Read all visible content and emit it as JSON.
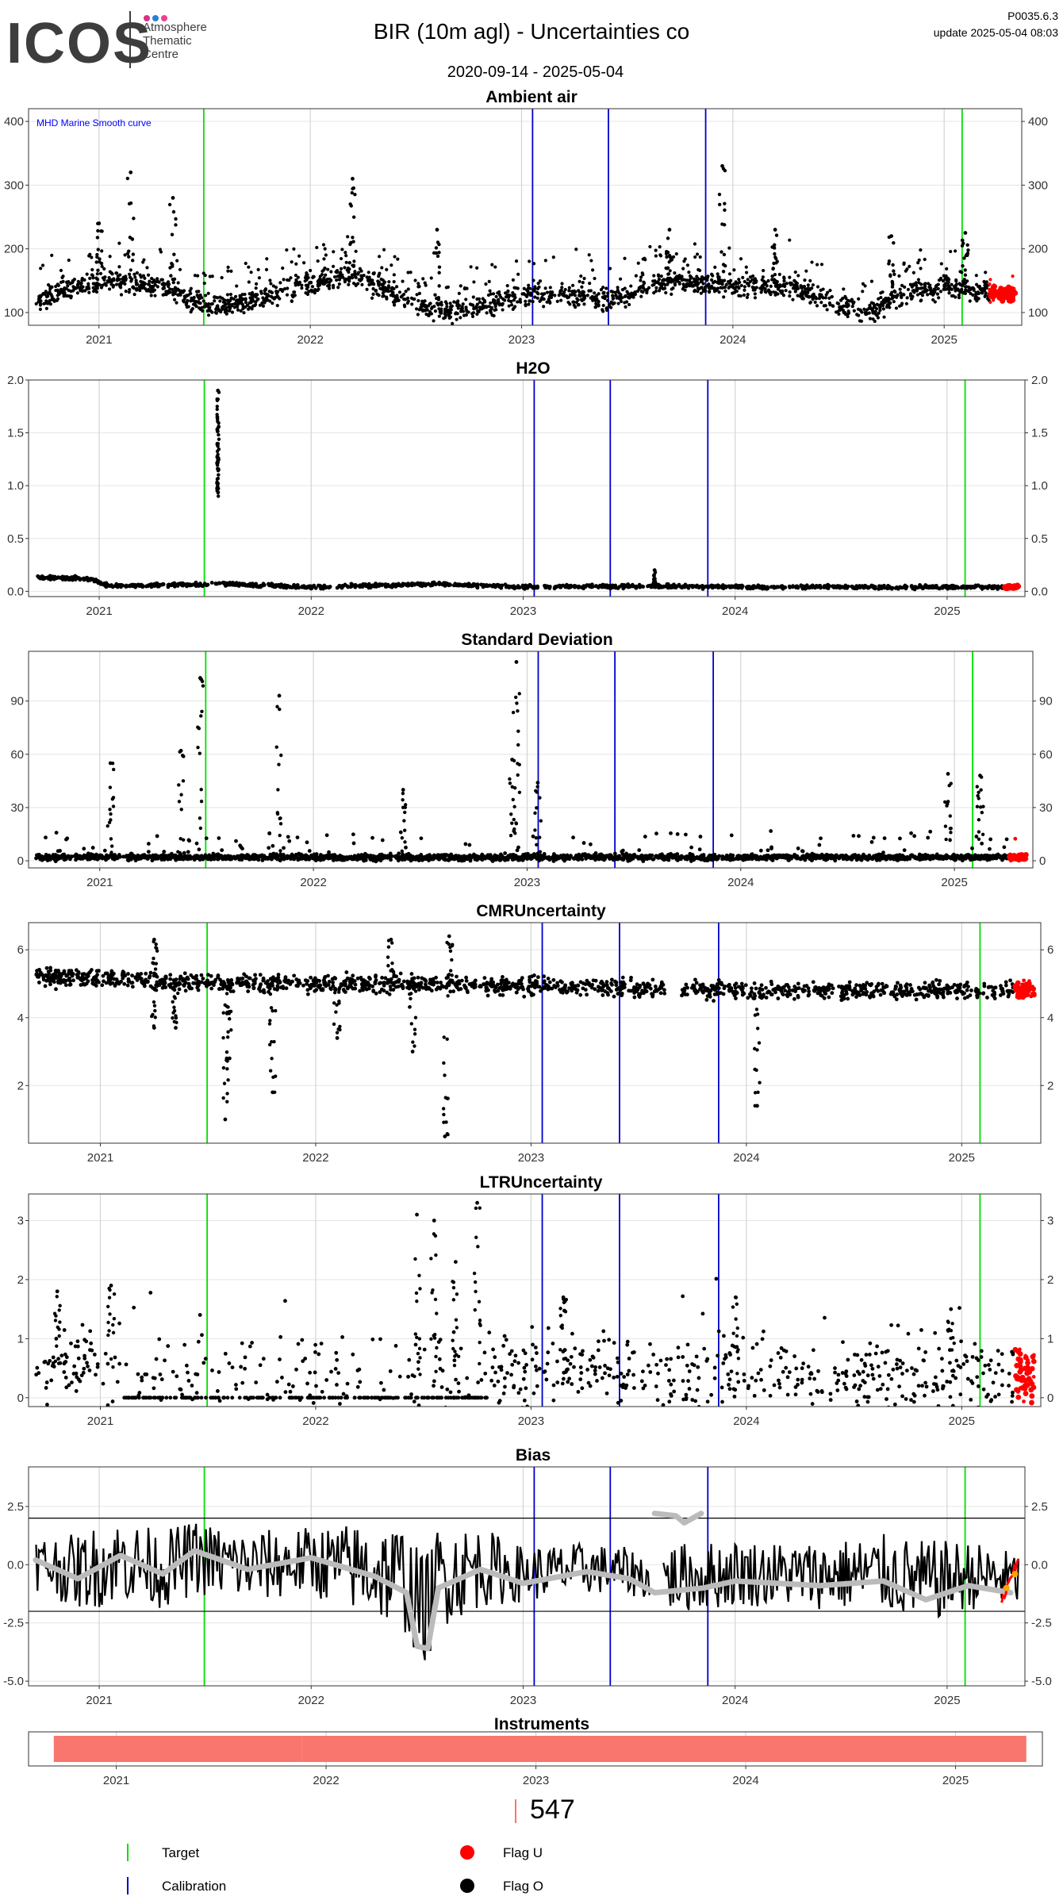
{
  "header": {
    "logo_text": "ICOS",
    "logo_sub": [
      "Atmosphere",
      "Thematic",
      "Centre"
    ],
    "logo_dot_colors": [
      "#d63384",
      "#2a7fd4",
      "#e84393"
    ],
    "title": "BIR  (10m agl) - Uncertainties co",
    "date_range": "2020-09-14 - 2025-05-04",
    "version": "P0035.6.3",
    "update": "update  2025-05-04 08:03"
  },
  "colors": {
    "target": "#00e000",
    "calibration": "#0000cc",
    "flag_u": "#ff0000",
    "flag_o": "#000000",
    "smooth": "#bbbbbb",
    "instrument": "#f8766d",
    "annotation": "#0000ff"
  },
  "markers": {
    "target_dates": [
      "2021-07-01",
      "2025-02-01"
    ],
    "calibration_dates": [
      "2023-01-20",
      "2023-05-31",
      "2023-11-15"
    ]
  },
  "chart_data": [
    {
      "type": "scatter",
      "title": "Ambient air",
      "annotation": "MHD Marine Smooth curve",
      "xlim": [
        "2020-09-01",
        "2025-05-15"
      ],
      "ylim": [
        80,
        420
      ],
      "yticks": [
        100,
        200,
        300,
        400
      ],
      "xticks": [
        "2021",
        "2022",
        "2023",
        "2024",
        "2025"
      ],
      "baseline": [
        [
          2020.7,
          120
        ],
        [
          2020.9,
          140
        ],
        [
          2021.1,
          150
        ],
        [
          2021.3,
          140
        ],
        [
          2021.5,
          110
        ],
        [
          2021.7,
          115
        ],
        [
          2022.0,
          145
        ],
        [
          2022.2,
          160
        ],
        [
          2022.4,
          130
        ],
        [
          2022.6,
          100
        ],
        [
          2022.8,
          108
        ],
        [
          2023.0,
          125
        ],
        [
          2023.2,
          130
        ],
        [
          2023.4,
          118
        ],
        [
          2023.6,
          142
        ],
        [
          2023.75,
          150
        ],
        [
          2023.95,
          142
        ],
        [
          2024.3,
          140
        ],
        [
          2024.5,
          112
        ],
        [
          2024.65,
          100
        ],
        [
          2024.8,
          130
        ],
        [
          2025.0,
          140
        ],
        [
          2025.3,
          128
        ]
      ],
      "spikes": [
        [
          2021.0,
          240
        ],
        [
          2021.15,
          320
        ],
        [
          2021.35,
          280
        ],
        [
          2022.2,
          310
        ],
        [
          2022.6,
          230
        ],
        [
          2023.7,
          230
        ],
        [
          2023.95,
          330
        ],
        [
          2024.2,
          230
        ],
        [
          2024.75,
          220
        ],
        [
          2025.1,
          225
        ]
      ],
      "flag_u_range": [
        "2025-03-20",
        "2025-05-04"
      ]
    },
    {
      "type": "scatter",
      "title": "H2O",
      "xlim": [
        "2020-09-01",
        "2025-05-15"
      ],
      "ylim": [
        -0.05,
        2.0
      ],
      "yticks": [
        0.0,
        0.5,
        1.0,
        1.5,
        2.0
      ],
      "ytick_labels": [
        "0.0",
        "0.5",
        "1.0",
        "1.5",
        "2.0"
      ],
      "xticks": [
        "2021",
        "2022",
        "2023",
        "2024",
        "2025"
      ],
      "baseline": [
        [
          2020.7,
          0.13
        ],
        [
          2020.95,
          0.12
        ],
        [
          2021.05,
          0.05
        ],
        [
          2021.6,
          0.07
        ],
        [
          2022.0,
          0.04
        ],
        [
          2022.6,
          0.07
        ],
        [
          2023.0,
          0.04
        ],
        [
          2023.6,
          0.05
        ],
        [
          2024.0,
          0.04
        ],
        [
          2025.3,
          0.04
        ]
      ],
      "spikes": [
        [
          2021.56,
          1.9
        ],
        [
          2023.62,
          0.2
        ]
      ],
      "flag_u_range": [
        "2025-04-10",
        "2025-05-04"
      ]
    },
    {
      "type": "scatter",
      "title": "Standard Deviation",
      "xlim": [
        "2020-09-01",
        "2025-05-15"
      ],
      "ylim": [
        -4,
        118
      ],
      "yticks": [
        0,
        30,
        60,
        90
      ],
      "xticks": [
        "2021",
        "2022",
        "2023",
        "2024",
        "2025"
      ],
      "baseline": [
        [
          2020.7,
          2
        ],
        [
          2025.3,
          2
        ]
      ],
      "spikes": [
        [
          2021.05,
          55
        ],
        [
          2021.47,
          103
        ],
        [
          2021.38,
          62
        ],
        [
          2021.84,
          93
        ],
        [
          2022.42,
          40
        ],
        [
          2022.95,
          112
        ],
        [
          2022.93,
          57
        ],
        [
          2023.05,
          44
        ],
        [
          2024.97,
          49
        ],
        [
          2025.12,
          48
        ]
      ],
      "flag_u_range": [
        "2025-04-05",
        "2025-05-04"
      ]
    },
    {
      "type": "scatter",
      "title": "CMRUncertainty",
      "xlim": [
        "2020-09-01",
        "2025-05-15"
      ],
      "ylim": [
        0.3,
        6.8
      ],
      "yticks": [
        2,
        4,
        6
      ],
      "xticks": [
        "2021",
        "2022",
        "2023",
        "2024",
        "2025"
      ],
      "baseline": [
        [
          2020.7,
          5.2
        ],
        [
          2021.2,
          5.1
        ],
        [
          2021.6,
          5.0
        ],
        [
          2022.5,
          5.0
        ],
        [
          2023.2,
          4.9
        ],
        [
          2024.0,
          4.8
        ],
        [
          2025.3,
          4.8
        ]
      ],
      "spikes": [
        [
          2021.6,
          2.8
        ],
        [
          2021.58,
          1.0
        ],
        [
          2021.8,
          1.8
        ],
        [
          2022.1,
          3.4
        ],
        [
          2022.45,
          3.0
        ],
        [
          2022.6,
          0.5
        ],
        [
          2022.35,
          6.3
        ],
        [
          2022.62,
          6.4
        ],
        [
          2021.25,
          6.3
        ],
        [
          2024.05,
          1.4
        ],
        [
          2021.25,
          3.7
        ],
        [
          2021.35,
          3.7
        ]
      ],
      "flag_u_range": [
        "2025-04-01",
        "2025-05-04"
      ]
    },
    {
      "type": "scatter",
      "title": "LTRUncertainty",
      "xlim": [
        "2020-09-01",
        "2025-05-15"
      ],
      "ylim": [
        -0.15,
        3.45
      ],
      "yticks": [
        0,
        1,
        2,
        3
      ],
      "xticks": [
        "2021",
        "2022",
        "2023",
        "2024",
        "2025"
      ],
      "baseline": [
        [
          2020.7,
          0.6
        ],
        [
          2021.0,
          0.5
        ],
        [
          2021.5,
          0.35
        ],
        [
          2022.5,
          0.35
        ],
        [
          2023.2,
          0.5
        ],
        [
          2023.8,
          0.4
        ],
        [
          2024.5,
          0.35
        ],
        [
          2025.3,
          0.4
        ]
      ],
      "spikes": [
        [
          2020.8,
          1.8
        ],
        [
          2021.05,
          1.9
        ],
        [
          2022.47,
          3.1
        ],
        [
          2022.55,
          3.0
        ],
        [
          2022.75,
          3.3
        ],
        [
          2022.65,
          2.3
        ],
        [
          2023.15,
          1.7
        ],
        [
          2023.95,
          1.7
        ],
        [
          2024.95,
          1.5
        ]
      ],
      "flag_u_range": [
        "2025-04-01",
        "2025-05-04"
      ]
    },
    {
      "type": "line",
      "title": "Bias",
      "xlim": [
        "2020-09-01",
        "2025-05-15"
      ],
      "ylim": [
        -5.2,
        4.2
      ],
      "yticks": [
        -5.0,
        -2.5,
        0.0,
        2.5
      ],
      "ytick_labels": [
        "-5.0",
        "-2.5",
        "0.0",
        "2.5"
      ],
      "xticks": [
        "2021",
        "2022",
        "2023",
        "2024",
        "2025"
      ],
      "hlines": [
        2,
        -2
      ],
      "smooth": [
        [
          2020.7,
          0.2
        ],
        [
          2020.9,
          -0.6
        ],
        [
          2021.1,
          0.4
        ],
        [
          2021.3,
          -0.4
        ],
        [
          2021.45,
          0.6
        ],
        [
          2021.7,
          -0.2
        ],
        [
          2022.0,
          0.3
        ],
        [
          2022.3,
          -0.5
        ],
        [
          2022.45,
          -1.2
        ],
        [
          2022.5,
          -3.5
        ],
        [
          2022.55,
          -3.6
        ],
        [
          2022.6,
          -1.0
        ],
        [
          2022.8,
          -0.2
        ],
        [
          2023.0,
          -0.8
        ],
        [
          2023.3,
          -0.3
        ],
        [
          2023.5,
          -0.6
        ],
        [
          2023.62,
          -1.2
        ],
        [
          2023.85,
          -1.0
        ],
        [
          2024.0,
          -0.7
        ],
        [
          2024.4,
          -0.9
        ],
        [
          2024.7,
          -0.7
        ],
        [
          2024.9,
          -1.5
        ],
        [
          2025.1,
          -0.9
        ],
        [
          2025.3,
          -1.2
        ]
      ],
      "smooth_segment_2": [
        [
          2023.62,
          2.2
        ],
        [
          2023.72,
          2.1
        ],
        [
          2023.76,
          1.8
        ],
        [
          2023.84,
          2.2
        ]
      ],
      "wiggle_envelope": [
        [
          2020.7,
          1.2
        ],
        [
          2021.0,
          1.8
        ],
        [
          2021.5,
          1.6
        ],
        [
          2022.0,
          1.5
        ],
        [
          2022.5,
          2.5
        ],
        [
          2022.7,
          2.0
        ],
        [
          2023.0,
          1.2
        ],
        [
          2023.6,
          1.0
        ],
        [
          2023.7,
          1.5
        ],
        [
          2024.3,
          1.4
        ],
        [
          2024.9,
          1.8
        ],
        [
          2025.3,
          1.2
        ]
      ],
      "orange_points": [
        [
          2025.28,
          -1.0
        ],
        [
          2025.32,
          -0.4
        ]
      ],
      "flag_u_range": [
        "2025-04-05",
        "2025-05-04"
      ]
    },
    {
      "type": "bar",
      "title": "Instruments",
      "xlim": [
        "2020-08-01",
        "2025-06-01"
      ],
      "xticks": [
        "2021",
        "2022",
        "2023",
        "2024",
        "2025"
      ],
      "segments": [
        [
          "2020-09-14",
          "2021-11-20"
        ],
        [
          "2021-11-20",
          "2025-05-04"
        ]
      ],
      "instrument_label": "547"
    }
  ],
  "legend": [
    {
      "label": "Target",
      "kind": "vline",
      "color": "#00e000"
    },
    {
      "label": "Flag U",
      "kind": "dot",
      "color": "#ff0000"
    },
    {
      "label": "Calibration",
      "kind": "vline",
      "color": "#0000cc"
    },
    {
      "label": "Flag O",
      "kind": "dot",
      "color": "#000000"
    }
  ]
}
